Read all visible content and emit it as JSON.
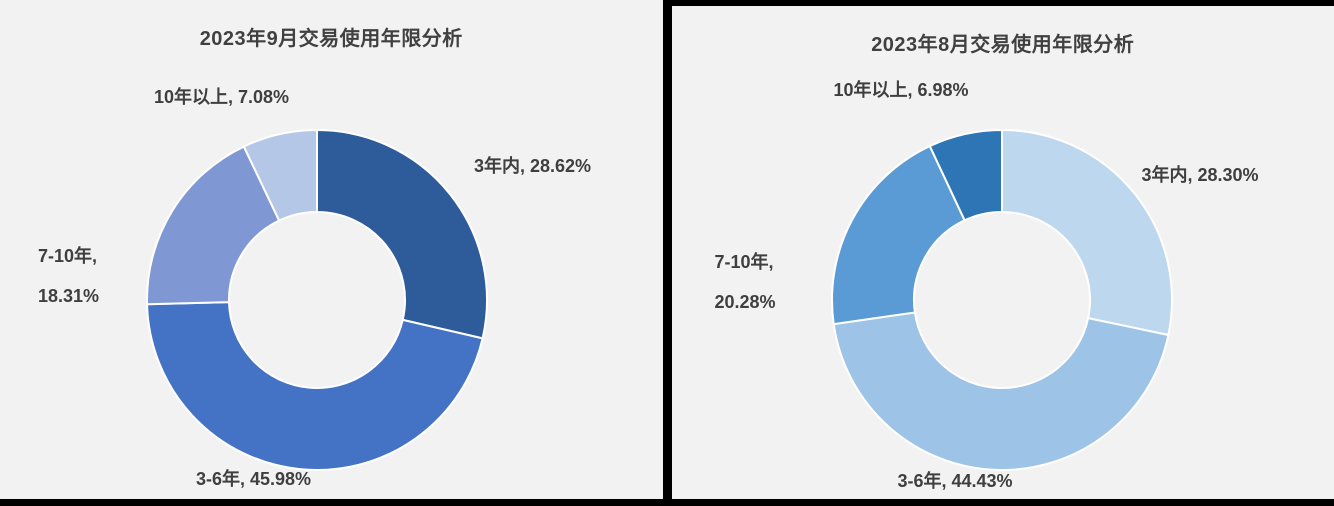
{
  "page": {
    "background": "#F2F2F2",
    "divider_color": "#000000"
  },
  "chart_data": [
    {
      "type": "pie",
      "subtype": "donut",
      "title": "2023年9月交易使用年限分析",
      "categories": [
        "3年内",
        "3-6年",
        "7-10年",
        "10年以上"
      ],
      "values": [
        28.62,
        45.98,
        18.31,
        7.08
      ],
      "unit": "%",
      "colors": [
        "#2E5B9A",
        "#4472C4",
        "#7F97D2",
        "#B4C7E7"
      ],
      "start_angle": 0,
      "direction": "clockwise",
      "legend": "none",
      "hole_ratio": 0.52,
      "data_labels": {
        "seg0": "3年内, 28.62%",
        "seg1": "3-6年, 45.98%",
        "seg2_line1": "7-10年,",
        "seg2_line2": "18.31%",
        "seg3": "10年以上, 7.08%"
      }
    },
    {
      "type": "pie",
      "subtype": "donut",
      "title": "2023年8月交易使用年限分析",
      "categories": [
        "3年内",
        "3-6年",
        "7-10年",
        "10年以上"
      ],
      "values": [
        28.3,
        44.43,
        20.28,
        6.98
      ],
      "unit": "%",
      "colors": [
        "#BDD7EE",
        "#9DC3E6",
        "#5B9BD5",
        "#2E75B6"
      ],
      "start_angle": 0,
      "direction": "clockwise",
      "legend": "none",
      "hole_ratio": 0.52,
      "data_labels": {
        "seg0": "3年内, 28.30%",
        "seg1": "3-6年, 44.43%",
        "seg2_line1": "7-10年,",
        "seg2_line2": "20.28%",
        "seg3": "10年以上, 6.98%"
      }
    }
  ]
}
